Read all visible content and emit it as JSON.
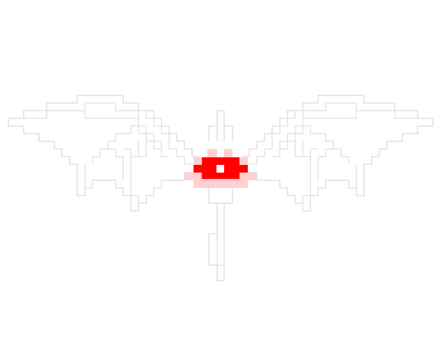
{
  "artwork": {
    "description_hidden": "",
    "colors": {
      "background": "#ffffff",
      "line": "#cfcfcf",
      "eye_core": "#ff0000",
      "eye_glow": "#ffd0d0",
      "pupil": "#ffffff"
    },
    "icons": [
      "winged-eye-icon"
    ]
  }
}
